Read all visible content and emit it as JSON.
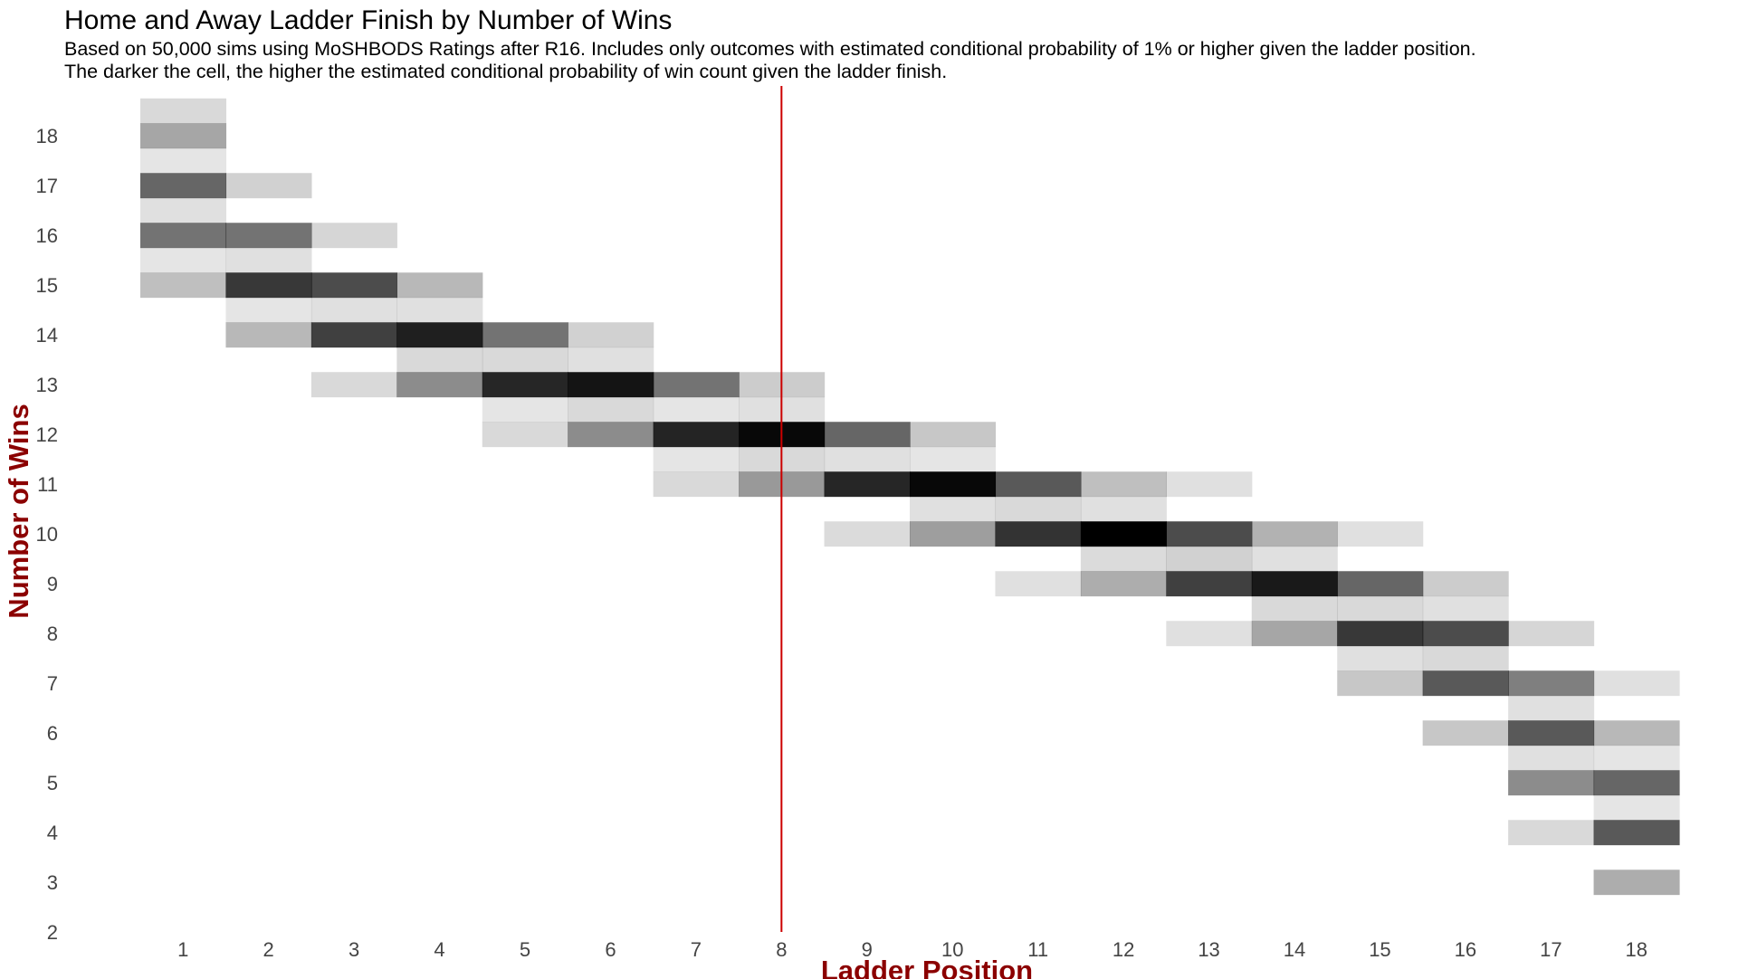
{
  "chart_data": {
    "type": "heatmap",
    "title": "Home and Away Ladder Finish by Number of Wins",
    "subtitle_lines": [
      "Based on 50,000 sims using MoSHBODS Ratings after R16. Includes only outcomes with estimated conditional probability of 1% or higher given the ladder position.",
      "The darker the cell, the higher the estimated conditional probability of win count given the ladder finish."
    ],
    "xlabel": "Ladder Position",
    "ylabel": "Number of Wins",
    "x_ticks": [
      1,
      2,
      3,
      4,
      5,
      6,
      7,
      8,
      9,
      10,
      11,
      12,
      13,
      14,
      15,
      16,
      17,
      18
    ],
    "y_ticks": [
      2,
      3,
      4,
      5,
      6,
      7,
      8,
      9,
      10,
      11,
      12,
      13,
      14,
      15,
      16,
      17,
      18
    ],
    "xlim": [
      0.5,
      18.5
    ],
    "ylim": [
      2,
      19
    ],
    "reference_line": {
      "x": 8,
      "color": "#cc0000"
    },
    "cell_color": "#000000",
    "grid": false,
    "legend": "none",
    "cells": [
      {
        "x": 1,
        "y": 18.5,
        "p": 0.15
      },
      {
        "x": 1,
        "y": 18,
        "p": 0.35
      },
      {
        "x": 1,
        "y": 17.5,
        "p": 0.1
      },
      {
        "x": 1,
        "y": 17,
        "p": 0.6
      },
      {
        "x": 1,
        "y": 16.5,
        "p": 0.12
      },
      {
        "x": 1,
        "y": 16,
        "p": 0.55
      },
      {
        "x": 1,
        "y": 15.5,
        "p": 0.1
      },
      {
        "x": 1,
        "y": 15,
        "p": 0.25
      },
      {
        "x": 2,
        "y": 17,
        "p": 0.18
      },
      {
        "x": 2,
        "y": 16,
        "p": 0.55
      },
      {
        "x": 2,
        "y": 15.5,
        "p": 0.12
      },
      {
        "x": 2,
        "y": 15,
        "p": 0.78
      },
      {
        "x": 2,
        "y": 14.5,
        "p": 0.1
      },
      {
        "x": 2,
        "y": 14,
        "p": 0.28
      },
      {
        "x": 3,
        "y": 16,
        "p": 0.16
      },
      {
        "x": 3,
        "y": 15,
        "p": 0.7
      },
      {
        "x": 3,
        "y": 14.5,
        "p": 0.12
      },
      {
        "x": 3,
        "y": 14,
        "p": 0.75
      },
      {
        "x": 3,
        "y": 13,
        "p": 0.15
      },
      {
        "x": 4,
        "y": 15,
        "p": 0.28
      },
      {
        "x": 4,
        "y": 14.5,
        "p": 0.12
      },
      {
        "x": 4,
        "y": 14,
        "p": 0.88
      },
      {
        "x": 4,
        "y": 13.5,
        "p": 0.15
      },
      {
        "x": 4,
        "y": 13,
        "p": 0.45
      },
      {
        "x": 5,
        "y": 14,
        "p": 0.55
      },
      {
        "x": 5,
        "y": 13.5,
        "p": 0.15
      },
      {
        "x": 5,
        "y": 13,
        "p": 0.85
      },
      {
        "x": 5,
        "y": 12.5,
        "p": 0.1
      },
      {
        "x": 5,
        "y": 12,
        "p": 0.15
      },
      {
        "x": 6,
        "y": 14,
        "p": 0.18
      },
      {
        "x": 6,
        "y": 13.5,
        "p": 0.12
      },
      {
        "x": 6,
        "y": 13,
        "p": 0.92
      },
      {
        "x": 6,
        "y": 12.5,
        "p": 0.15
      },
      {
        "x": 6,
        "y": 12,
        "p": 0.45
      },
      {
        "x": 7,
        "y": 13,
        "p": 0.55
      },
      {
        "x": 7,
        "y": 12.5,
        "p": 0.1
      },
      {
        "x": 7,
        "y": 12,
        "p": 0.86
      },
      {
        "x": 7,
        "y": 11.5,
        "p": 0.1
      },
      {
        "x": 7,
        "y": 11,
        "p": 0.15
      },
      {
        "x": 8,
        "y": 13,
        "p": 0.2
      },
      {
        "x": 8,
        "y": 12.5,
        "p": 0.12
      },
      {
        "x": 8,
        "y": 12,
        "p": 0.97
      },
      {
        "x": 8,
        "y": 11.5,
        "p": 0.15
      },
      {
        "x": 8,
        "y": 11,
        "p": 0.4
      },
      {
        "x": 9,
        "y": 12,
        "p": 0.6
      },
      {
        "x": 9,
        "y": 11.5,
        "p": 0.12
      },
      {
        "x": 9,
        "y": 11,
        "p": 0.85
      },
      {
        "x": 9,
        "y": 10,
        "p": 0.14
      },
      {
        "x": 10,
        "y": 12,
        "p": 0.22
      },
      {
        "x": 10,
        "y": 11.5,
        "p": 0.1
      },
      {
        "x": 10,
        "y": 11,
        "p": 0.97
      },
      {
        "x": 10,
        "y": 10.5,
        "p": 0.12
      },
      {
        "x": 10,
        "y": 10,
        "p": 0.38
      },
      {
        "x": 11,
        "y": 11,
        "p": 0.65
      },
      {
        "x": 11,
        "y": 10.5,
        "p": 0.15
      },
      {
        "x": 11,
        "y": 10,
        "p": 0.8
      },
      {
        "x": 11,
        "y": 9,
        "p": 0.12
      },
      {
        "x": 12,
        "y": 11,
        "p": 0.25
      },
      {
        "x": 12,
        "y": 10.5,
        "p": 0.12
      },
      {
        "x": 12,
        "y": 10,
        "p": 1.0
      },
      {
        "x": 12,
        "y": 9.5,
        "p": 0.14
      },
      {
        "x": 12,
        "y": 9,
        "p": 0.32
      },
      {
        "x": 13,
        "y": 11,
        "p": 0.12
      },
      {
        "x": 13,
        "y": 10,
        "p": 0.7
      },
      {
        "x": 13,
        "y": 9.5,
        "p": 0.18
      },
      {
        "x": 13,
        "y": 9,
        "p": 0.75
      },
      {
        "x": 13,
        "y": 8,
        "p": 0.12
      },
      {
        "x": 14,
        "y": 10,
        "p": 0.3
      },
      {
        "x": 14,
        "y": 9.5,
        "p": 0.12
      },
      {
        "x": 14,
        "y": 9,
        "p": 0.9
      },
      {
        "x": 14,
        "y": 8.5,
        "p": 0.15
      },
      {
        "x": 14,
        "y": 8,
        "p": 0.35
      },
      {
        "x": 15,
        "y": 10,
        "p": 0.12
      },
      {
        "x": 15,
        "y": 9,
        "p": 0.6
      },
      {
        "x": 15,
        "y": 8.5,
        "p": 0.15
      },
      {
        "x": 15,
        "y": 8,
        "p": 0.78
      },
      {
        "x": 15,
        "y": 7.5,
        "p": 0.12
      },
      {
        "x": 15,
        "y": 7,
        "p": 0.22
      },
      {
        "x": 16,
        "y": 9,
        "p": 0.2
      },
      {
        "x": 16,
        "y": 8.5,
        "p": 0.12
      },
      {
        "x": 16,
        "y": 8,
        "p": 0.7
      },
      {
        "x": 16,
        "y": 7.5,
        "p": 0.15
      },
      {
        "x": 16,
        "y": 7,
        "p": 0.65
      },
      {
        "x": 16,
        "y": 6,
        "p": 0.22
      },
      {
        "x": 17,
        "y": 8,
        "p": 0.16
      },
      {
        "x": 17,
        "y": 7,
        "p": 0.5
      },
      {
        "x": 17,
        "y": 6.5,
        "p": 0.12
      },
      {
        "x": 17,
        "y": 6,
        "p": 0.65
      },
      {
        "x": 17,
        "y": 5.5,
        "p": 0.12
      },
      {
        "x": 17,
        "y": 5,
        "p": 0.45
      },
      {
        "x": 17,
        "y": 4,
        "p": 0.15
      },
      {
        "x": 18,
        "y": 7,
        "p": 0.12
      },
      {
        "x": 18,
        "y": 6,
        "p": 0.28
      },
      {
        "x": 18,
        "y": 5.5,
        "p": 0.1
      },
      {
        "x": 18,
        "y": 5,
        "p": 0.6
      },
      {
        "x": 18,
        "y": 4.5,
        "p": 0.1
      },
      {
        "x": 18,
        "y": 4,
        "p": 0.65
      },
      {
        "x": 18,
        "y": 3,
        "p": 0.32
      }
    ]
  }
}
